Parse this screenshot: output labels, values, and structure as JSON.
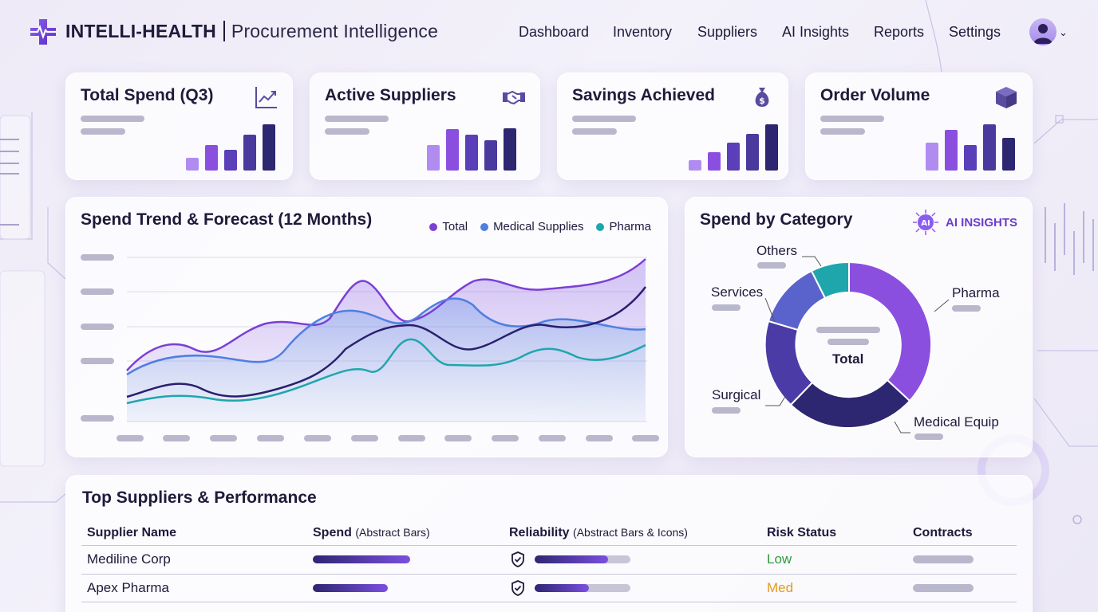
{
  "header": {
    "brand_name": "INTELLI-HEALTH",
    "brand_subtitle": "Procurement Intelligence",
    "nav": [
      "Dashboard",
      "Inventory",
      "Suppliers",
      "AI Insights",
      "Reports",
      "Settings"
    ]
  },
  "kpis": [
    {
      "title": "Total Spend (Q3)",
      "icon": "trend-chart-icon",
      "bars": [
        0.28,
        0.55,
        0.45,
        0.78,
        1.0
      ]
    },
    {
      "title": "Active Suppliers",
      "icon": "handshake-icon",
      "bars": [
        0.55,
        0.9,
        0.78,
        0.65,
        0.92
      ]
    },
    {
      "title": "Savings Achieved",
      "icon": "money-bag-icon",
      "bars": [
        0.22,
        0.4,
        0.6,
        0.8,
        1.0
      ]
    },
    {
      "title": "Order Volume",
      "icon": "package-icon",
      "bars": [
        0.6,
        0.88,
        0.55,
        1.0,
        0.7
      ]
    }
  ],
  "trend": {
    "title": "Spend Trend & Forecast (12 Months)",
    "legend": [
      {
        "name": "Total",
        "color": "#7b3fd6"
      },
      {
        "name": "Medical Supplies",
        "color": "#4f7fe0"
      },
      {
        "name": "Pharma",
        "color": "#1fa6ad"
      }
    ]
  },
  "category": {
    "title": "Spend by Category",
    "ai_badge": "AI INSIGHTS",
    "center_label": "Total",
    "labels": [
      "Others",
      "Pharma",
      "Services",
      "Surgical",
      "Medical Equip"
    ]
  },
  "suppliers": {
    "title": "Top Suppliers & Performance",
    "columns": [
      {
        "label": "Supplier Name",
        "note": ""
      },
      {
        "label": "Spend",
        "note": "(Abstract Bars)"
      },
      {
        "label": "Reliability",
        "note": "(Abstract Bars & Icons)"
      },
      {
        "label": "Risk Status",
        "note": ""
      },
      {
        "label": "Contracts",
        "note": ""
      }
    ],
    "rows": [
      {
        "name": "Mediline Corp",
        "spend": 0.85,
        "reliability": 0.78,
        "risk": "Low",
        "risk_color": "#2e9a3e"
      },
      {
        "name": "Apex Pharma",
        "spend": 0.65,
        "reliability": 0.58,
        "risk": "Med",
        "risk_color": "#e29a1c"
      }
    ]
  }
}
